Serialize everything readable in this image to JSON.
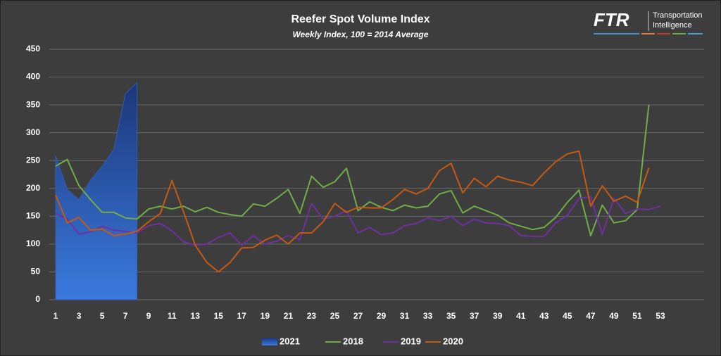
{
  "logo": {
    "name": "FTR",
    "tagline": [
      "Transportation",
      "Intelligence"
    ]
  },
  "chart_data": {
    "type": "line",
    "title": "Reefer Spot Volume Index",
    "subtitle": "Weekly Index, 100 = 2014 Average",
    "x": [
      1,
      2,
      3,
      4,
      5,
      6,
      7,
      8,
      9,
      10,
      11,
      12,
      13,
      14,
      15,
      16,
      17,
      18,
      19,
      20,
      21,
      22,
      23,
      24,
      25,
      26,
      27,
      28,
      29,
      30,
      31,
      32,
      33,
      34,
      35,
      36,
      37,
      38,
      39,
      40,
      41,
      42,
      43,
      44,
      45,
      46,
      47,
      48,
      49,
      50,
      51,
      52,
      53
    ],
    "xlim": [
      1,
      53
    ],
    "xticks": [
      1,
      3,
      5,
      7,
      9,
      11,
      13,
      15,
      17,
      19,
      21,
      23,
      25,
      27,
      29,
      31,
      33,
      35,
      37,
      39,
      41,
      43,
      45,
      47,
      49,
      51,
      53
    ],
    "ylim": [
      0,
      450
    ],
    "yticks": [
      0,
      50,
      100,
      150,
      200,
      250,
      300,
      350,
      400,
      450
    ],
    "grid": true,
    "legend": "bottom",
    "series": [
      {
        "name": "2021",
        "type": "area",
        "color": "#2f5fb8",
        "values": [
          258,
          198,
          180,
          215,
          240,
          270,
          370,
          390,
          null,
          null,
          null,
          null,
          null,
          null,
          null,
          null,
          null,
          null,
          null,
          null,
          null,
          null,
          null,
          null,
          null,
          null,
          null,
          null,
          null,
          null,
          null,
          null,
          null,
          null,
          null,
          null,
          null,
          null,
          null,
          null,
          null,
          null,
          null,
          null,
          null,
          null,
          null,
          null,
          null,
          null,
          null,
          null,
          null
        ]
      },
      {
        "name": "2018",
        "type": "line",
        "color": "#70ad47",
        "values": [
          240,
          252,
          205,
          180,
          157,
          157,
          147,
          145,
          163,
          168,
          163,
          168,
          158,
          166,
          157,
          153,
          150,
          172,
          168,
          182,
          198,
          155,
          222,
          202,
          212,
          236,
          160,
          176,
          166,
          160,
          170,
          165,
          168,
          190,
          196,
          156,
          168,
          160,
          152,
          138,
          132,
          126,
          130,
          148,
          175,
          197,
          115,
          170,
          138,
          142,
          162,
          350,
          null
        ]
      },
      {
        "name": "2019",
        "type": "line",
        "color": "#7030a0",
        "values": [
          155,
          145,
          118,
          122,
          132,
          125,
          123,
          120,
          133,
          137,
          124,
          104,
          98,
          100,
          112,
          120,
          98,
          115,
          100,
          105,
          115,
          108,
          173,
          145,
          150,
          160,
          120,
          130,
          117,
          120,
          133,
          137,
          147,
          142,
          150,
          133,
          145,
          138,
          137,
          133,
          115,
          114,
          114,
          138,
          152,
          182,
          185,
          117,
          182,
          155,
          163,
          162,
          168
        ]
      },
      {
        "name": "2020",
        "type": "line",
        "color": "#c55a11",
        "values": [
          188,
          138,
          148,
          125,
          127,
          115,
          118,
          123,
          140,
          155,
          214,
          158,
          98,
          67,
          50,
          67,
          93,
          94,
          107,
          116,
          100,
          120,
          120,
          140,
          173,
          157,
          166,
          165,
          165,
          180,
          198,
          190,
          200,
          232,
          245,
          192,
          218,
          203,
          222,
          215,
          211,
          205,
          228,
          248,
          262,
          267,
          168,
          205,
          177,
          186,
          175,
          237,
          null
        ]
      }
    ]
  }
}
